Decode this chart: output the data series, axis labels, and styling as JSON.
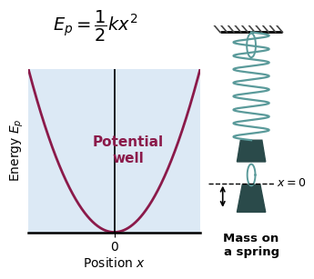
{
  "title_latex": "$E_p = \\dfrac{1}{2}kx^2$",
  "xlabel": "Position $x$",
  "ylabel": "Energy $E_p$",
  "curve_color": "#8B1A4A",
  "curve_linewidth": 2.0,
  "bg_color": "#dce9f5",
  "grid_color": "#a8c8e8",
  "label_text": "Potential\nwell",
  "label_color": "#8B1A4A",
  "label_fontsize": 11,
  "x_tick_label": "0",
  "x_range": [
    -1,
    1
  ],
  "y_range": [
    0,
    1
  ],
  "title_fontsize": 14,
  "axis_label_fontsize": 10,
  "side_label_x": "$x = 0$",
  "side_label_mass": "Mass on\na spring",
  "spring_color": "#5a9a9a",
  "mass_color": "#2a4a4a",
  "hatch_color": "#444444"
}
